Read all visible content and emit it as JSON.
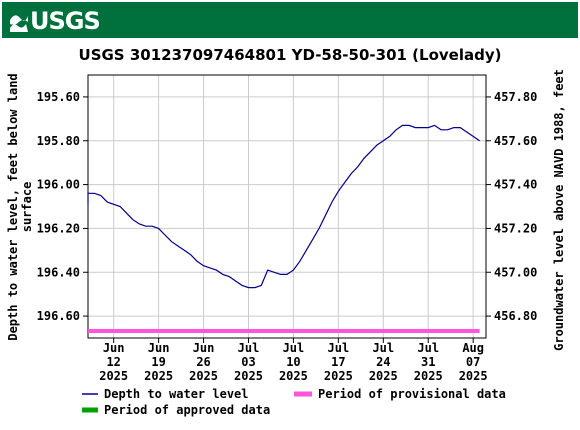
{
  "header": {
    "brand": "USGS",
    "brand_color": "#00703c"
  },
  "chart_data": {
    "type": "line",
    "title": "USGS 301237097464801 YD-58-50-301 (Lovelady)",
    "ylabel_left_line1": "Depth to water level, feet below land",
    "ylabel_left_line2": "surface",
    "ylabel_right": "Groundwater level above NAVD 1988, feet",
    "y_left_reversed": true,
    "y_left_range": [
      195.5,
      196.7
    ],
    "y_left_ticks": [
      "195.60",
      "195.80",
      "196.00",
      "196.20",
      "196.40",
      "196.60"
    ],
    "y_left_tick_values": [
      195.6,
      195.8,
      196.0,
      196.2,
      196.4,
      196.6
    ],
    "y_right_ticks": [
      "457.80",
      "457.60",
      "457.40",
      "457.20",
      "457.00",
      "456.80"
    ],
    "y_right_tick_values": [
      457.8,
      457.6,
      457.4,
      457.2,
      457.0,
      456.8
    ],
    "x_range": [
      "2025-06-08",
      "2025-08-09"
    ],
    "x_ticks": [
      {
        "date": "2025-06-12",
        "month": "Jun",
        "day": "12",
        "year": "2025"
      },
      {
        "date": "2025-06-19",
        "month": "Jun",
        "day": "19",
        "year": "2025"
      },
      {
        "date": "2025-06-26",
        "month": "Jun",
        "day": "26",
        "year": "2025"
      },
      {
        "date": "2025-07-03",
        "month": "Jul",
        "day": "03",
        "year": "2025"
      },
      {
        "date": "2025-07-10",
        "month": "Jul",
        "day": "10",
        "year": "2025"
      },
      {
        "date": "2025-07-17",
        "month": "Jul",
        "day": "17",
        "year": "2025"
      },
      {
        "date": "2025-07-24",
        "month": "Jul",
        "day": "24",
        "year": "2025"
      },
      {
        "date": "2025-07-31",
        "month": "Jul",
        "day": "31",
        "year": "2025"
      },
      {
        "date": "2025-08-07",
        "month": "Aug",
        "day": "07",
        "year": "2025"
      }
    ],
    "grid": true,
    "series": [
      {
        "name": "Depth to water level",
        "color": "#00008b",
        "points": [
          [
            "2025-06-08",
            196.09
          ],
          [
            "2025-06-08",
            196.04
          ],
          [
            "2025-06-09",
            196.04
          ],
          [
            "2025-06-10",
            196.05
          ],
          [
            "2025-06-11",
            196.08
          ],
          [
            "2025-06-12",
            196.09
          ],
          [
            "2025-06-13",
            196.1
          ],
          [
            "2025-06-14",
            196.13
          ],
          [
            "2025-06-15",
            196.16
          ],
          [
            "2025-06-16",
            196.18
          ],
          [
            "2025-06-17",
            196.19
          ],
          [
            "2025-06-18",
            196.19
          ],
          [
            "2025-06-19",
            196.2
          ],
          [
            "2025-06-20",
            196.23
          ],
          [
            "2025-06-21",
            196.26
          ],
          [
            "2025-06-22",
            196.28
          ],
          [
            "2025-06-23",
            196.3
          ],
          [
            "2025-06-24",
            196.32
          ],
          [
            "2025-06-25",
            196.35
          ],
          [
            "2025-06-26",
            196.37
          ],
          [
            "2025-06-27",
            196.38
          ],
          [
            "2025-06-28",
            196.39
          ],
          [
            "2025-06-29",
            196.41
          ],
          [
            "2025-06-30",
            196.42
          ],
          [
            "2025-07-01",
            196.44
          ],
          [
            "2025-07-02",
            196.46
          ],
          [
            "2025-07-03",
            196.47
          ],
          [
            "2025-07-04",
            196.47
          ],
          [
            "2025-07-05",
            196.46
          ],
          [
            "2025-07-06",
            196.39
          ],
          [
            "2025-07-07",
            196.4
          ],
          [
            "2025-07-08",
            196.41
          ],
          [
            "2025-07-09",
            196.41
          ],
          [
            "2025-07-10",
            196.39
          ],
          [
            "2025-07-11",
            196.35
          ],
          [
            "2025-07-12",
            196.3
          ],
          [
            "2025-07-13",
            196.25
          ],
          [
            "2025-07-14",
            196.2
          ],
          [
            "2025-07-15",
            196.14
          ],
          [
            "2025-07-16",
            196.08
          ],
          [
            "2025-07-17",
            196.03
          ],
          [
            "2025-07-18",
            195.99
          ],
          [
            "2025-07-19",
            195.95
          ],
          [
            "2025-07-20",
            195.92
          ],
          [
            "2025-07-21",
            195.88
          ],
          [
            "2025-07-22",
            195.85
          ],
          [
            "2025-07-23",
            195.82
          ],
          [
            "2025-07-24",
            195.8
          ],
          [
            "2025-07-25",
            195.78
          ],
          [
            "2025-07-26",
            195.75
          ],
          [
            "2025-07-27",
            195.73
          ],
          [
            "2025-07-28",
            195.73
          ],
          [
            "2025-07-29",
            195.74
          ],
          [
            "2025-07-30",
            195.74
          ],
          [
            "2025-07-31",
            195.74
          ],
          [
            "2025-08-01",
            195.73
          ],
          [
            "2025-08-02",
            195.75
          ],
          [
            "2025-08-03",
            195.75
          ],
          [
            "2025-08-04",
            195.74
          ],
          [
            "2025-08-05",
            195.74
          ],
          [
            "2025-08-06",
            195.76
          ],
          [
            "2025-08-07",
            195.78
          ],
          [
            "2025-08-08",
            195.8
          ]
        ]
      }
    ],
    "provisional_band": {
      "name": "Period of provisional data",
      "color": "#ff55dd",
      "start": "2025-06-08",
      "end": "2025-08-08"
    },
    "legend": [
      {
        "label": "Depth to water level",
        "color": "#00008b",
        "kind": "line"
      },
      {
        "label": "Period of provisional data",
        "color": "#ff55dd",
        "kind": "thick"
      },
      {
        "label": "Period of approved data",
        "color": "#00a000",
        "kind": "thick"
      }
    ]
  }
}
